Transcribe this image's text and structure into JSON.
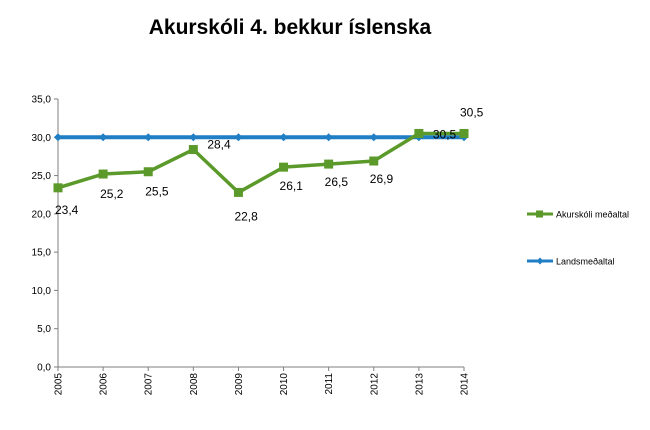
{
  "chart_data": {
    "type": "line",
    "title": "Akurskóli 4. bekkur íslenska",
    "xlabel": "",
    "ylabel": "",
    "categories": [
      "2005",
      "2006",
      "2007",
      "2008",
      "2009",
      "2010",
      "2011",
      "2012",
      "2013",
      "2014"
    ],
    "ylim": [
      0,
      35
    ],
    "yticks": [
      "0,0",
      "5,0",
      "10,0",
      "15,0",
      "20,0",
      "25,0",
      "30,0",
      "35,0"
    ],
    "grid": false,
    "legend_position": "right",
    "series": [
      {
        "name": "Akurskóli meðaltal",
        "color": "#5b9a2a",
        "marker": "square",
        "values": [
          23.4,
          25.2,
          25.5,
          28.4,
          22.8,
          26.1,
          26.5,
          26.9,
          30.5,
          30.5
        ],
        "data_labels": [
          "23,4",
          "25,2",
          "25,5",
          "28,4",
          "22,8",
          "26,1",
          "26,5",
          "26,9",
          "30,5",
          "30,5"
        ]
      },
      {
        "name": "Landsmeðaltal",
        "color": "#1f7ec4",
        "marker": "diamond",
        "values": [
          30,
          30,
          30,
          30,
          30,
          30,
          30,
          30,
          30,
          30
        ]
      }
    ]
  }
}
